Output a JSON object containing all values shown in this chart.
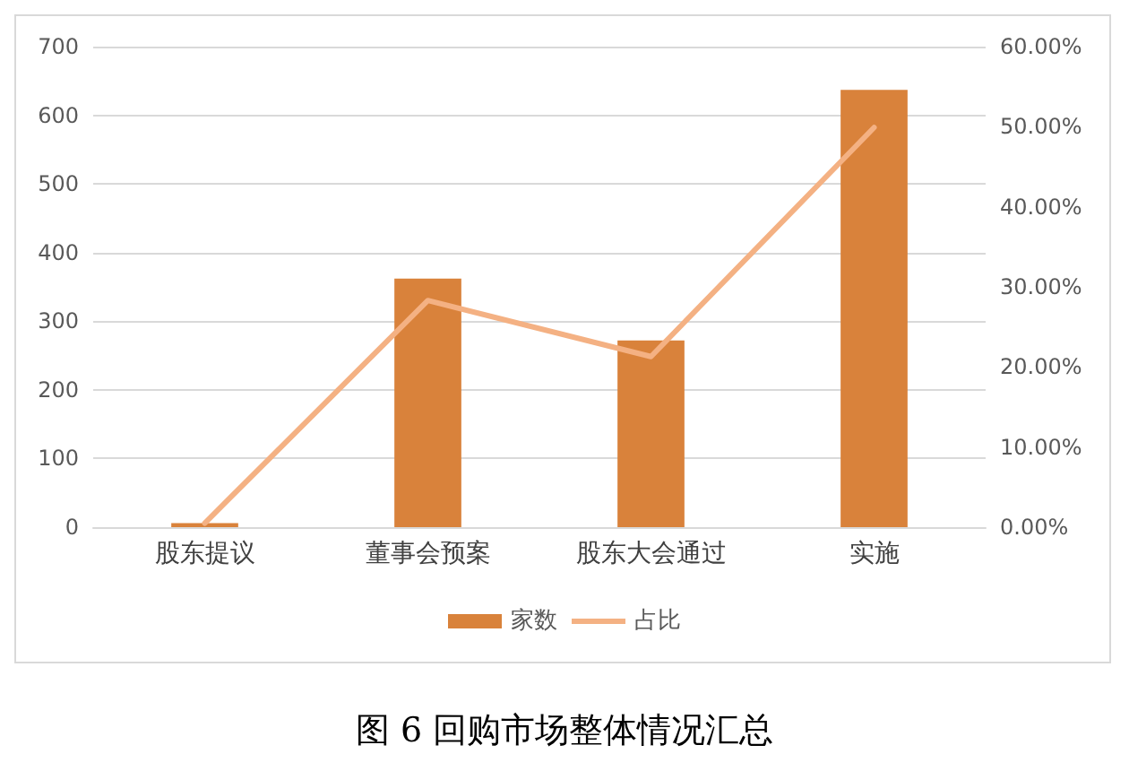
{
  "chart_data": {
    "type": "bar",
    "title": "图 6 回购市场整体情况汇总",
    "categories": [
      "股东提议",
      "董事会预案",
      "股东大会通过",
      "实施"
    ],
    "series": [
      {
        "name": "家数",
        "color": "#d9823b",
        "values": [
          6,
          362,
          272,
          637
        ]
      },
      {
        "name": "占比",
        "type": "line",
        "axis": "y2",
        "color": "#f4b183",
        "values": [
          0.5,
          28.3,
          21.3,
          49.9
        ]
      }
    ],
    "ylim": [
      0,
      700
    ],
    "yticks": [
      0,
      100,
      200,
      300,
      400,
      500,
      600,
      700
    ],
    "y2lim": [
      0,
      60
    ],
    "y2ticks": [
      {
        "value": 0,
        "label": "0.00%"
      },
      {
        "value": 10,
        "label": "10.00%"
      },
      {
        "value": 20,
        "label": "20.00%"
      },
      {
        "value": 30,
        "label": "30.00%"
      },
      {
        "value": 40,
        "label": "40.00%"
      },
      {
        "value": 50,
        "label": "50.00%"
      },
      {
        "value": 60,
        "label": "60.00%"
      }
    ],
    "grid": "y",
    "legend": "bottom",
    "marker": "none",
    "line_style": "solid"
  }
}
